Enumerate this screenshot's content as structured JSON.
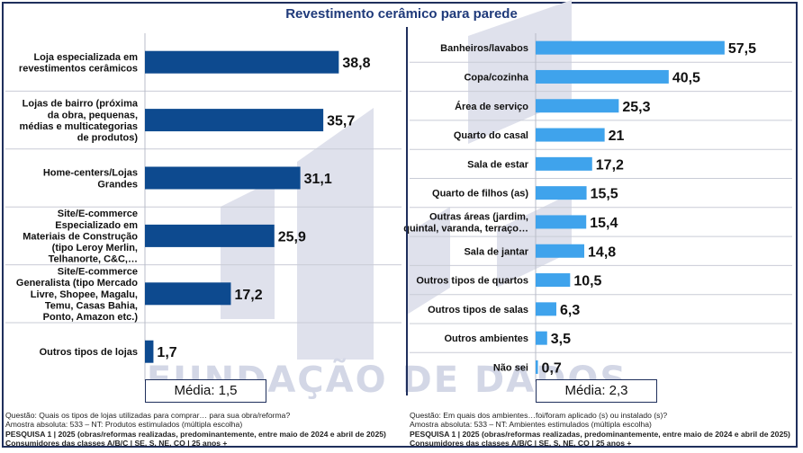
{
  "title": "Revestimento cerâmico para parede",
  "watermark": "FUNDAÇÃO DE DADOS",
  "colors": {
    "left_bar": "#0d4a8f",
    "right_bar": "#3fa3ec",
    "title": "#1f3a7a",
    "frame": "#1f2f5c"
  },
  "chart_data": [
    {
      "type": "bar",
      "orientation": "horizontal",
      "categories": [
        "Loja especializada em revestimentos cerâmicos",
        "Lojas de bairro (próxima da obra, pequenas, médias e multicategorias de produtos)",
        "Home-centers/Lojas Grandes",
        "Site/E-commerce Especializado em Materiais de Construção (tipo Leroy Merlin, Telhanorte, C&C,…",
        "Site/E-commerce Generalista (tipo Mercado Livre, Shopee, Magalu, Temu, Casas Bahia, Ponto, Amazon etc.)",
        "Outros tipos de lojas"
      ],
      "label_lines": [
        [
          "Loja especializada em",
          "revestimentos cerâmicos"
        ],
        [
          "Lojas de bairro (próxima",
          "da obra, pequenas,",
          "médias e multicategorias",
          "de produtos)"
        ],
        [
          "Home-centers/Lojas",
          "Grandes"
        ],
        [
          "Site/E-commerce",
          "Especializado em",
          "Materiais de Construção",
          "(tipo Leroy Merlin,",
          "Telhanorte, C&C,…"
        ],
        [
          "Site/E-commerce",
          "Generalista (tipo Mercado",
          "Livre, Shopee, Magalu,",
          "Temu, Casas Bahia,",
          "Ponto, Amazon etc.)"
        ],
        [
          "Outros tipos de lojas"
        ]
      ],
      "values": [
        38.8,
        35.7,
        31.1,
        25.9,
        17.2,
        1.7
      ],
      "value_labels": [
        "38,8",
        "35,7",
        "31,1",
        "25,9",
        "17,2",
        "1,7"
      ],
      "mean_label": "Média: 1,5"
    },
    {
      "type": "bar",
      "orientation": "horizontal",
      "categories": [
        "Banheiros/lavabos",
        "Copa/cozinha",
        "Área de serviço",
        "Quarto do casal",
        "Sala  de estar",
        "Quarto de filhos (as)",
        "Outras áreas (jardim, quintal, varanda, terraço…",
        "Sala de jantar",
        "Outros tipos de quartos",
        "Outros tipos de salas",
        "Outros ambientes",
        "Não sei"
      ],
      "label_lines": [
        [
          "Banheiros/lavabos"
        ],
        [
          "Copa/cozinha"
        ],
        [
          "Área de serviço"
        ],
        [
          "Quarto do casal"
        ],
        [
          "Sala  de estar"
        ],
        [
          "Quarto de filhos (as)"
        ],
        [
          "Outras áreas (jardim,",
          "quintal, varanda, terraço…"
        ],
        [
          "Sala de jantar"
        ],
        [
          "Outros tipos de quartos"
        ],
        [
          "Outros tipos de salas"
        ],
        [
          "Outros ambientes"
        ],
        [
          "Não sei"
        ]
      ],
      "values": [
        57.5,
        40.5,
        25.3,
        21,
        17.2,
        15.5,
        15.4,
        14.8,
        10.5,
        6.3,
        3.5,
        0.7
      ],
      "value_labels": [
        "57,5",
        "40,5",
        "25,3",
        "21",
        "17,2",
        "15,5",
        "15,4",
        "14,8",
        "10,5",
        "6,3",
        "3,5",
        "0,7"
      ],
      "mean_label": "Média: 2,3"
    }
  ],
  "footnotes": {
    "left": [
      "Questão: Quais os tipos de lojas utilizadas para comprar… para sua obra/reforma?",
      "Amostra absoluta: 533 – NT: Produtos estimulados (múltipla escolha)",
      "PESQUISA 1 | 2025 (obras/reformas realizadas, predominantemente, entre maio de 2024 e abril de 2025)",
      "Consumidores das classes A/B/C | SE, S, NE, CO | 25 anos +"
    ],
    "right": [
      "Questão: Em quais dos ambientes…foi/foram aplicado (s) ou instalado (s)?",
      "Amostra absoluta: 533 – NT: Ambientes estimulados (múltipla escolha)",
      "PESQUISA 1 | 2025 (obras/reformas realizadas, predominantemente, entre maio de 2024 e abril de 2025)",
      "Consumidores das classes A/B/C | SE, S, NE, CO | 25 anos +"
    ]
  }
}
